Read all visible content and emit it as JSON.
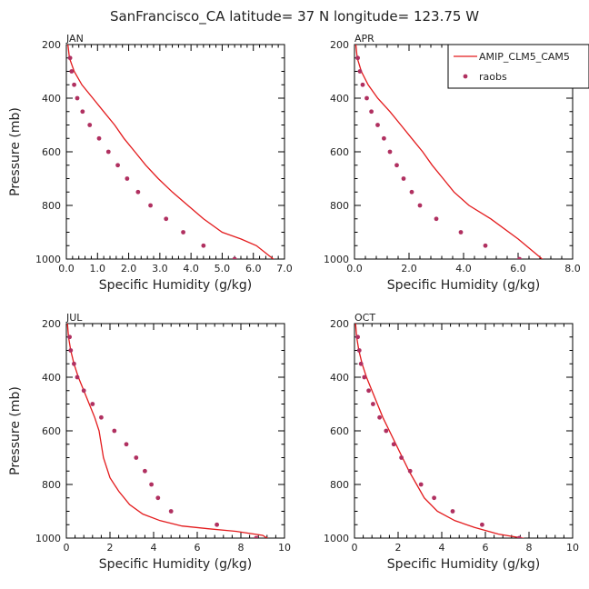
{
  "title": "SanFrancisco_CA  latitude= 37 N longitude= 123.75 W",
  "legend": {
    "placement": "top-right",
    "items": [
      {
        "label": "AMIP_CLM5_CAM5",
        "kind": "line",
        "color": "#e31a1c"
      },
      {
        "label": "raobs",
        "kind": "marker",
        "color": "#b03060"
      }
    ]
  },
  "chart_data": [
    {
      "type": "line",
      "panel": "JAN",
      "xlabel": "Specific Humidity (g/kg)",
      "ylabel": "Pressure (mb)",
      "xlim": [
        0,
        7
      ],
      "ylim": [
        1000,
        200
      ],
      "xticks": [
        0,
        1,
        2,
        3,
        4,
        5,
        6,
        7
      ],
      "xtick_labels": [
        "0.0",
        "1.0",
        "2.0",
        "3.0",
        "4.0",
        "5.0",
        "6.0",
        "7.0"
      ],
      "yticks": [
        200,
        400,
        600,
        800,
        1000
      ],
      "ytick_labels": [
        "200",
        "400",
        "600",
        "800",
        "1000"
      ],
      "series": [
        {
          "name": "AMIP_CLM5_CAM5",
          "style": "line",
          "color": "#e31a1c",
          "x": [
            0.05,
            0.1,
            0.25,
            0.5,
            0.85,
            1.2,
            1.55,
            1.85,
            2.2,
            2.55,
            2.95,
            3.4,
            3.9,
            4.4,
            5.0,
            5.6,
            6.1,
            6.75
          ],
          "y": [
            200,
            250,
            300,
            350,
            400,
            450,
            500,
            550,
            600,
            650,
            700,
            750,
            800,
            850,
            900,
            925,
            950,
            1010
          ]
        },
        {
          "name": "raobs",
          "style": "scatter",
          "color": "#b03060",
          "x": [
            0.12,
            0.17,
            0.25,
            0.35,
            0.52,
            0.75,
            1.05,
            1.35,
            1.65,
            1.95,
            2.3,
            2.7,
            3.2,
            3.75,
            4.4,
            5.4
          ],
          "y": [
            250,
            300,
            350,
            400,
            450,
            500,
            550,
            600,
            650,
            700,
            750,
            800,
            850,
            900,
            950,
            1000
          ]
        }
      ]
    },
    {
      "type": "line",
      "panel": "APR",
      "xlabel": "Specific Humidity (g/kg)",
      "ylabel": "",
      "xlim": [
        0,
        8
      ],
      "ylim": [
        1000,
        200
      ],
      "xticks": [
        0,
        2,
        4,
        6,
        8
      ],
      "xtick_labels": [
        "0.0",
        "2.0",
        "4.0",
        "6.0",
        "8.0"
      ],
      "yticks": [
        200,
        400,
        600,
        800,
        1000
      ],
      "ytick_labels": [
        "200",
        "400",
        "600",
        "800",
        "1000"
      ],
      "series": [
        {
          "name": "AMIP_CLM5_CAM5",
          "style": "line",
          "color": "#e31a1c",
          "x": [
            0.05,
            0.1,
            0.25,
            0.5,
            0.85,
            1.3,
            1.7,
            2.1,
            2.5,
            2.85,
            3.25,
            3.65,
            4.2,
            5.0,
            6.0,
            7.0
          ],
          "y": [
            200,
            250,
            300,
            350,
            400,
            450,
            500,
            550,
            600,
            650,
            700,
            750,
            800,
            850,
            925,
            1010
          ]
        },
        {
          "name": "raobs",
          "style": "scatter",
          "color": "#b03060",
          "x": [
            0.12,
            0.2,
            0.3,
            0.45,
            0.62,
            0.85,
            1.08,
            1.3,
            1.55,
            1.8,
            2.1,
            2.4,
            3.0,
            3.9,
            4.8,
            6.05
          ],
          "y": [
            250,
            300,
            350,
            400,
            450,
            500,
            550,
            600,
            650,
            700,
            750,
            800,
            850,
            900,
            950,
            1000
          ]
        }
      ]
    },
    {
      "type": "line",
      "panel": "JUL",
      "xlabel": "Specific Humidity (g/kg)",
      "ylabel": "Pressure (mb)",
      "xlim": [
        0,
        10
      ],
      "ylim": [
        1000,
        200
      ],
      "xticks": [
        0,
        2,
        4,
        6,
        8,
        10
      ],
      "xtick_labels": [
        "0",
        "2",
        "4",
        "6",
        "8",
        "10"
      ],
      "yticks": [
        200,
        400,
        600,
        800,
        1000
      ],
      "ytick_labels": [
        "200",
        "400",
        "600",
        "800",
        "1000"
      ],
      "series": [
        {
          "name": "AMIP_CLM5_CAM5",
          "style": "line",
          "color": "#e31a1c",
          "x": [
            0.05,
            0.1,
            0.2,
            0.35,
            0.55,
            0.8,
            1.05,
            1.3,
            1.5,
            1.7,
            2.0,
            2.4,
            2.9,
            3.5,
            4.3,
            5.3,
            6.5,
            7.8,
            9.0,
            9.4
          ],
          "y": [
            200,
            250,
            300,
            350,
            400,
            450,
            500,
            550,
            600,
            700,
            775,
            825,
            875,
            910,
            935,
            955,
            965,
            975,
            990,
            1010
          ]
        },
        {
          "name": "raobs",
          "style": "scatter",
          "color": "#b03060",
          "x": [
            0.15,
            0.2,
            0.35,
            0.5,
            0.8,
            1.2,
            1.6,
            2.2,
            2.75,
            3.2,
            3.6,
            3.9,
            4.2,
            4.8,
            6.9,
            8.7
          ],
          "y": [
            250,
            300,
            350,
            400,
            450,
            500,
            550,
            600,
            650,
            700,
            750,
            800,
            850,
            900,
            950,
            1000
          ]
        }
      ]
    },
    {
      "type": "line",
      "panel": "OCT",
      "xlabel": "Specific Humidity (g/kg)",
      "ylabel": "",
      "xlim": [
        0,
        10
      ],
      "ylim": [
        1000,
        200
      ],
      "xticks": [
        0,
        2,
        4,
        6,
        8,
        10
      ],
      "xtick_labels": [
        "0",
        "2",
        "4",
        "6",
        "8",
        "10"
      ],
      "yticks": [
        200,
        400,
        600,
        800,
        1000
      ],
      "ytick_labels": [
        "200",
        "400",
        "600",
        "800",
        "1000"
      ],
      "series": [
        {
          "name": "AMIP_CLM5_CAM5",
          "style": "line",
          "color": "#e31a1c",
          "x": [
            0.05,
            0.1,
            0.2,
            0.35,
            0.55,
            0.8,
            1.05,
            1.3,
            1.6,
            1.9,
            2.2,
            2.5,
            2.85,
            3.2,
            3.8,
            4.6,
            5.5,
            6.6,
            7.7,
            8.2
          ],
          "y": [
            200,
            250,
            300,
            350,
            400,
            450,
            500,
            550,
            600,
            650,
            700,
            750,
            800,
            850,
            900,
            935,
            960,
            985,
            1000,
            1010
          ]
        },
        {
          "name": "raobs",
          "style": "scatter",
          "color": "#b03060",
          "x": [
            0.15,
            0.22,
            0.3,
            0.45,
            0.65,
            0.85,
            1.15,
            1.45,
            1.8,
            2.15,
            2.55,
            3.05,
            3.65,
            4.5,
            5.85,
            7.55
          ],
          "y": [
            250,
            300,
            350,
            400,
            450,
            500,
            550,
            600,
            650,
            700,
            750,
            800,
            850,
            900,
            950,
            1000
          ]
        }
      ]
    }
  ]
}
